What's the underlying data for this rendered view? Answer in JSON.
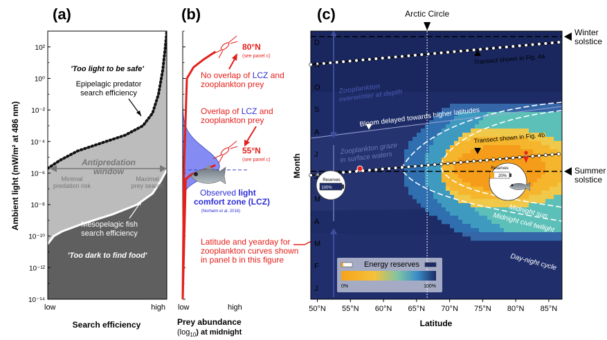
{
  "chart_data": [
    {
      "panel": "a",
      "type": "area",
      "panel_label": "(a)",
      "ylabel": "Ambient light  (mW/m² at 486 nm)",
      "xlabel": "Search efficiency",
      "x_ticks": [
        "low",
        "high"
      ],
      "y_ticks": [
        "10²",
        "10⁰",
        "10⁻²",
        "10⁻⁴",
        "10⁻⁶",
        "10⁻⁸",
        "10⁻¹⁰",
        "10⁻¹²",
        "10⁻¹⁴"
      ],
      "y_exponents": [
        2,
        0,
        -2,
        -4,
        -6,
        -8,
        -10,
        -12,
        -14
      ],
      "ylim_log10": [
        -14,
        3
      ],
      "series": [
        {
          "name": "Epipelagic predator search efficiency",
          "x": [
            0.0,
            0.1,
            0.25,
            0.45,
            0.65,
            0.8,
            0.88,
            0.93,
            0.965,
            0.985,
            1.0
          ],
          "y_log10": [
            -5.7,
            -5.2,
            -4.6,
            -4.1,
            -3.6,
            -3.0,
            -2.2,
            -1.0,
            0.5,
            1.8,
            3.0
          ]
        },
        {
          "name": "Mesopelagic fish search efficiency",
          "x": [
            0.0,
            0.05,
            0.12,
            0.3,
            0.55,
            0.75,
            0.88,
            0.95,
            1.0
          ],
          "y_log10": [
            -10.5,
            -10.0,
            -9.7,
            -9.2,
            -8.6,
            -8.0,
            -7.3,
            -6.5,
            -5.8
          ]
        }
      ],
      "annotations": [
        "'Too light to be safe'",
        "Epipelagic predator",
        "search efficiency",
        "Antipredation",
        "window",
        "Minimal",
        "predation risk",
        "Maximal",
        "prey search",
        "Mesopelagic fish",
        "search efficiency",
        "'Too dark to find food'"
      ]
    },
    {
      "panel": "b",
      "type": "line",
      "panel_label": "(b)",
      "xlabel_line1": "Prey abundance",
      "xlabel_line2a": "(log",
      "xlabel_line2b": "10",
      "xlabel_line2c": ") at midnight",
      "x_ticks": [
        "low",
        "high"
      ],
      "series": [
        {
          "name": "80°N",
          "x": [
            0.0,
            0.02,
            0.07,
            0.18,
            0.35,
            0.55
          ],
          "y_log10": [
            -14,
            -6,
            0,
            0.7,
            1.2,
            1.7
          ]
        },
        {
          "name": "55°N",
          "x": [
            0.0,
            0.05,
            0.14,
            0.28,
            0.42,
            0.55
          ],
          "y_log10": [
            -14,
            -6.4,
            -6.1,
            -5.9,
            -5.7,
            -5.5
          ]
        }
      ],
      "lcz": {
        "center_log10": -5.6,
        "sigma": 0.85,
        "peak_x": 0.62,
        "dashed_level_log10": -5.8
      },
      "annotations": {
        "n80": "80°N",
        "n80_sub": "(see panel c)",
        "no_overlap_1a": "No overlap of ",
        "no_overlap_1b": "LCZ",
        "no_overlap_1c": " and",
        "no_overlap_2": "zooplankton prey",
        "overlap_1a": "Overlap of ",
        "overlap_1b": "LCZ",
        "overlap_1c": " and",
        "overlap_2": "zooplankton prey",
        "n55": "55°N",
        "n55_sub": "(see panel c)",
        "lcz_1a": "Observed ",
        "lcz_1b": "light",
        "lcz_2": "comfort zone (LCZ)",
        "lcz_3": "(Norheim et al. 2016)",
        "lat_note_1": "Latitude and yearday for",
        "lat_note_2": "zooplankton curves shown",
        "lat_note_3": "in panel b in this figure"
      }
    },
    {
      "panel": "c",
      "type": "heatmap",
      "panel_label": "(c)",
      "xlabel": "Latitude",
      "ylabel": "Month",
      "x_ticks": [
        "50°N",
        "55°N",
        "60°N",
        "65°N",
        "70°N",
        "75°N",
        "80°N",
        "85°N"
      ],
      "x_values": [
        50,
        55,
        60,
        65,
        70,
        75,
        80,
        85
      ],
      "xlim": [
        49,
        87
      ],
      "y_ticks": [
        "D",
        "N",
        "O",
        "S",
        "A",
        "J",
        "J",
        "M",
        "A",
        "M",
        "F",
        "J"
      ],
      "arctic_circle": {
        "label": "Arctic Circle",
        "lat": 66.6
      },
      "solstices": {
        "winter": "Winter\nsolstice",
        "summer": "Summer\nsolstice"
      },
      "transect_4a": {
        "label": "Transect shown in Fig. 4a",
        "lat_start": 49,
        "lat_end": 86.5,
        "month_start": 11.0,
        "month_end": 12.0
      },
      "transect_4b": {
        "label": "Transect shown in Fig. 4b",
        "lat_start": 49,
        "lat_end": 86.5,
        "month_start": 6.05,
        "month_end": 7.0
      },
      "markers": [
        {
          "lat": 56,
          "month": 6.3,
          "reserves_label": "Reserves",
          "reserves_value": "100%"
        },
        {
          "lat": 81,
          "month": 6.95,
          "reserves_label": "Reserves",
          "reserves_value": "20%"
        }
      ],
      "colorbar": {
        "title": "Energy reserves",
        "min_label": "0%",
        "max_label": "100%"
      },
      "annotations": {
        "overwinter_1": "Zooplankton",
        "overwinter_2": "overwinter at depth",
        "graze_1": "Zooplankton graze",
        "graze_2": "in surface waters",
        "bloom": "Bloom delayed towards higher latitudes",
        "midnight_sun": "Midnight sun",
        "midnight_twilight": "Midnight civil twilight",
        "day_night": "Day-night cycle"
      }
    }
  ],
  "colors": {
    "red": "#e3201b",
    "blue_text": "#2c2cd6",
    "lcz_fill": "#6f78f2",
    "bg_navy": "#1d2b66",
    "gray_light": "#b9b9b9",
    "gray_dark": "#5e5e5e",
    "orange": "#f5a623"
  }
}
